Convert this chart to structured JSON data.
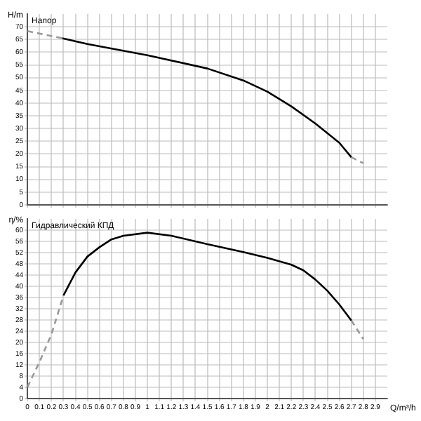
{
  "chart_data": [
    {
      "type": "line",
      "ylabel": "H/m",
      "annotations": [
        "Напор"
      ],
      "xlim": [
        0,
        3.0
      ],
      "xticks": [
        0,
        0.1,
        0.2,
        0.3,
        0.4,
        0.5,
        0.6,
        0.7,
        0.8,
        0.9,
        1,
        1.1,
        1.2,
        1.3,
        1.4,
        1.5,
        1.6,
        1.7,
        1.8,
        1.9,
        2,
        2.1,
        2.2,
        2.3,
        2.4,
        2.5,
        2.6,
        2.7,
        2.8,
        2.9
      ],
      "ylim": [
        0,
        75
      ],
      "yticks": [
        0,
        5,
        10,
        15,
        20,
        25,
        30,
        35,
        40,
        45,
        50,
        55,
        60,
        65,
        70
      ],
      "grid": true,
      "tick_labels": "y",
      "marker": "none",
      "series": [
        {
          "color": "#999999",
          "line_style": "dashed",
          "x": [
            0,
            0.29
          ],
          "values": [
            68.3,
            65.5
          ]
        },
        {
          "color": "#000000",
          "line_style": "solid",
          "x": [
            0.29,
            0.5,
            1.0,
            1.5,
            1.8,
            2.0,
            2.2,
            2.4,
            2.6,
            2.7
          ],
          "values": [
            65.5,
            63.2,
            58.8,
            53.6,
            48.9,
            44.5,
            38.7,
            32,
            24.4,
            18.7
          ]
        },
        {
          "color": "#999999",
          "line_style": "dashed",
          "x": [
            2.7,
            2.8
          ],
          "values": [
            18.7,
            16.4
          ]
        }
      ]
    },
    {
      "type": "line",
      "ylabel": "η/%",
      "xlabel": "Q/m³/h",
      "annotations": [
        "Гидравлический КПД"
      ],
      "xlim": [
        0,
        3.0
      ],
      "xticks": [
        0,
        0.1,
        0.2,
        0.3,
        0.4,
        0.5,
        0.6,
        0.7,
        0.8,
        0.9,
        1,
        1.1,
        1.2,
        1.3,
        1.4,
        1.5,
        1.6,
        1.7,
        1.8,
        1.9,
        2,
        2.1,
        2.2,
        2.3,
        2.4,
        2.5,
        2.6,
        2.7,
        2.8,
        2.9
      ],
      "ylim": [
        0,
        64
      ],
      "yticks": [
        0,
        4,
        8,
        12,
        16,
        20,
        24,
        28,
        32,
        36,
        40,
        44,
        48,
        52,
        56,
        60
      ],
      "grid": true,
      "marker": "none",
      "series": [
        {
          "color": "#999999",
          "line_style": "dashed",
          "x": [
            0,
            0.1,
            0.2,
            0.3
          ],
          "values": [
            4.1,
            13,
            22.9,
            36.7
          ]
        },
        {
          "color": "#000000",
          "line_style": "solid",
          "x": [
            0.3,
            0.4,
            0.5,
            0.6,
            0.7,
            0.8,
            1.0,
            1.2,
            1.5,
            1.8,
            2.0,
            2.2,
            2.3,
            2.4,
            2.5,
            2.6,
            2.7
          ],
          "values": [
            36.7,
            44.9,
            50.6,
            53.9,
            56.7,
            58,
            59.1,
            58,
            55,
            52.2,
            50.1,
            47.7,
            45.7,
            42.4,
            38.4,
            33.5,
            27.8
          ]
        },
        {
          "color": "#999999",
          "line_style": "dashed",
          "x": [
            2.7,
            2.8
          ],
          "values": [
            27.8,
            21.2
          ]
        }
      ]
    }
  ]
}
